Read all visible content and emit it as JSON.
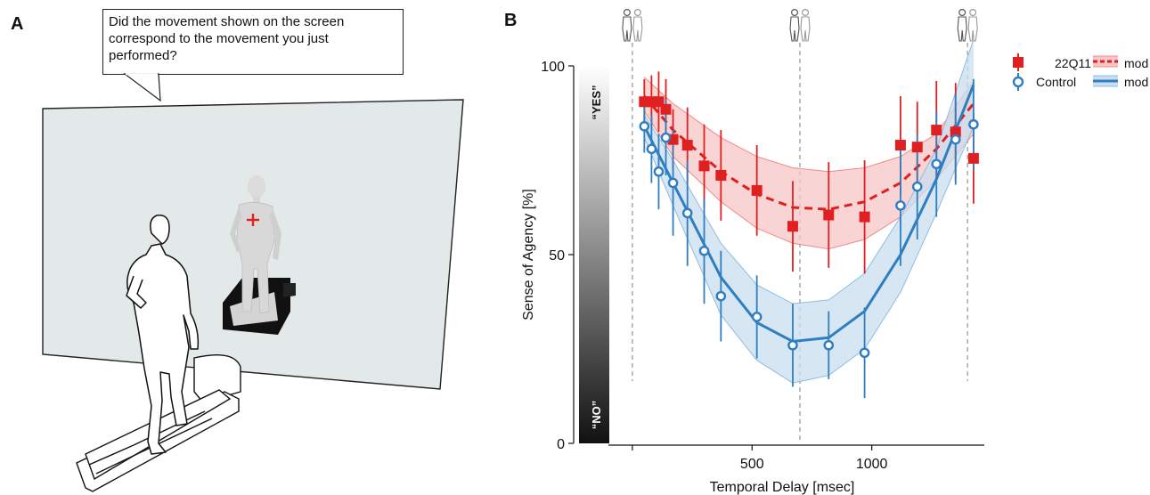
{
  "panel_a": {
    "label": "A",
    "question": "Did the movement shown on the screen correspond to the movement you just performed?"
  },
  "panel_b": {
    "label": "B"
  },
  "chart_data": {
    "type": "scatter",
    "title": "",
    "xlabel": "Temporal Delay [msec]",
    "ylabel": "Sense of Agency [%]",
    "xlim": [
      -100,
      1470
    ],
    "ylim": [
      0,
      100
    ],
    "x_ticks": [
      500,
      1000
    ],
    "y_ticks": [
      0,
      50,
      100
    ],
    "grid": false,
    "legend_position": "top-right",
    "scale_bar": {
      "top_label": "“YES”",
      "bottom_label": "“NO”"
    },
    "reference_delays": [
      0,
      700,
      1400
    ],
    "legend": {
      "series_22q11": "22Q11",
      "series_control": "Control",
      "model_label": "model"
    },
    "series": [
      {
        "name": "22Q11",
        "color": "#e02020",
        "marker": "square",
        "points": [
          {
            "x": 50,
            "y": 90.5,
            "err": 6
          },
          {
            "x": 80,
            "y": 90.5,
            "err": 7
          },
          {
            "x": 110,
            "y": 90.5,
            "err": 8
          },
          {
            "x": 140,
            "y": 88.5,
            "err": 8
          },
          {
            "x": 170,
            "y": 80.5,
            "err": 8
          },
          {
            "x": 230,
            "y": 79,
            "err": 10
          },
          {
            "x": 300,
            "y": 73.5,
            "err": 11
          },
          {
            "x": 370,
            "y": 71,
            "err": 12
          },
          {
            "x": 520,
            "y": 67,
            "err": 12
          },
          {
            "x": 670,
            "y": 57.5,
            "err": 12
          },
          {
            "x": 820,
            "y": 60.5,
            "err": 14
          },
          {
            "x": 970,
            "y": 60,
            "err": 15
          },
          {
            "x": 1120,
            "y": 79,
            "err": 13
          },
          {
            "x": 1190,
            "y": 78.5,
            "err": 12
          },
          {
            "x": 1270,
            "y": 83,
            "err": 13
          },
          {
            "x": 1350,
            "y": 82.5,
            "err": 13
          },
          {
            "x": 1425,
            "y": 75.5,
            "err": 12
          }
        ],
        "model": {
          "x": [
            50,
            170,
            370,
            520,
            670,
            820,
            970,
            1120,
            1270,
            1425
          ],
          "y": [
            92,
            83,
            72,
            66,
            62.5,
            62,
            64,
            69,
            78,
            90
          ],
          "lower": [
            88,
            76,
            64,
            57,
            53,
            51.5,
            54,
            60,
            70,
            82
          ],
          "upper": [
            97,
            90,
            81,
            76,
            73,
            72,
            73,
            76,
            82,
            96
          ]
        }
      },
      {
        "name": "Control",
        "color": "#2f7ec0",
        "marker": "circle",
        "points": [
          {
            "x": 50,
            "y": 84,
            "err": 7
          },
          {
            "x": 80,
            "y": 78,
            "err": 9
          },
          {
            "x": 110,
            "y": 72,
            "err": 10
          },
          {
            "x": 140,
            "y": 81,
            "err": 10
          },
          {
            "x": 170,
            "y": 69,
            "err": 14
          },
          {
            "x": 230,
            "y": 61,
            "err": 14
          },
          {
            "x": 300,
            "y": 51,
            "err": 14
          },
          {
            "x": 370,
            "y": 39,
            "err": 12
          },
          {
            "x": 520,
            "y": 33.5,
            "err": 11
          },
          {
            "x": 670,
            "y": 26,
            "err": 11
          },
          {
            "x": 820,
            "y": 26,
            "err": 9
          },
          {
            "x": 970,
            "y": 24,
            "err": 12
          },
          {
            "x": 1120,
            "y": 63,
            "err": 16
          },
          {
            "x": 1190,
            "y": 68,
            "err": 14
          },
          {
            "x": 1270,
            "y": 74,
            "err": 14
          },
          {
            "x": 1350,
            "y": 80.5,
            "err": 12
          },
          {
            "x": 1425,
            "y": 84.5,
            "err": 12
          }
        ],
        "model": {
          "x": [
            50,
            170,
            370,
            520,
            670,
            820,
            970,
            1120,
            1270,
            1425
          ],
          "y": [
            84,
            69,
            44,
            32,
            27,
            28,
            35,
            50,
            70,
            95
          ],
          "lower": [
            81,
            63,
            34,
            22,
            16,
            18,
            25,
            40,
            61,
            84
          ],
          "upper": [
            87,
            75,
            53,
            42,
            37,
            38,
            45,
            60,
            78,
            107
          ]
        }
      }
    ]
  }
}
